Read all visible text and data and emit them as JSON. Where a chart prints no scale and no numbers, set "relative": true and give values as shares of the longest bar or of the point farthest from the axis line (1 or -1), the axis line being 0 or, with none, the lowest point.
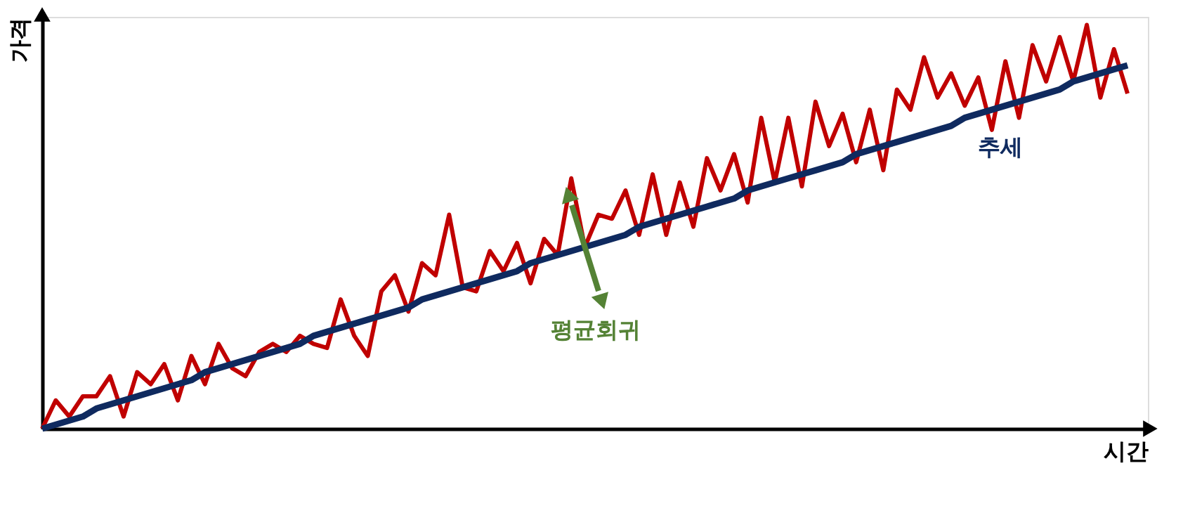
{
  "chart_data": {
    "type": "line",
    "relative": true,
    "xlabel": "시간",
    "ylabel": "가격",
    "categories": [
      null,
      null,
      null,
      null,
      null,
      null,
      null,
      null,
      null,
      null,
      null,
      null,
      null,
      null,
      null,
      null,
      null,
      null,
      null,
      null,
      null,
      null,
      null,
      null,
      null,
      null,
      null,
      null,
      null,
      null,
      null,
      null,
      null,
      null,
      null,
      null,
      null,
      null,
      null,
      null,
      null,
      null,
      null,
      null,
      null,
      null,
      null,
      null,
      null,
      null,
      null,
      null,
      null,
      null,
      null,
      null,
      null,
      null,
      null,
      null,
      null,
      null,
      null,
      null,
      null,
      null,
      null,
      null,
      null,
      null,
      null,
      null,
      null,
      null,
      null,
      null,
      null,
      null,
      null,
      null,
      null
    ],
    "series": [
      {
        "color": "#c00000",
        "values": [
          0,
          0.07,
          0.03,
          0.08,
          0.08,
          0.13,
          0.03,
          0.14,
          0.11,
          0.16,
          0.07,
          0.18,
          0.11,
          0.21,
          0.15,
          0.13,
          0.19,
          0.21,
          0.19,
          0.23,
          0.21,
          0.2,
          0.32,
          0.23,
          0.18,
          0.34,
          0.38,
          0.29,
          0.41,
          0.38,
          0.53,
          0.35,
          0.34,
          0.44,
          0.39,
          0.46,
          0.36,
          0.47,
          0.43,
          0.62,
          0.45,
          0.53,
          0.52,
          0.59,
          0.48,
          0.63,
          0.48,
          0.61,
          0.5,
          0.67,
          0.59,
          0.68,
          0.56,
          0.77,
          0.61,
          0.77,
          0.6,
          0.81,
          0.7,
          0.78,
          0.66,
          0.79,
          0.64,
          0.84,
          0.79,
          0.92,
          0.82,
          0.88,
          0.8,
          0.87,
          0.74,
          0.91,
          0.77,
          0.95,
          0.86,
          0.97,
          0.86,
          1,
          0.82,
          0.94,
          0.83
        ]
      },
      {
        "color": "#0f2a5f",
        "values": [
          0,
          0.01,
          0.02,
          0.03,
          0.05,
          0.06,
          0.07,
          0.08,
          0.09,
          0.1,
          0.11,
          0.12,
          0.14,
          0.15,
          0.16,
          0.17,
          0.18,
          0.19,
          0.2,
          0.21,
          0.23,
          0.24,
          0.25,
          0.26,
          0.27,
          0.28,
          0.29,
          0.3,
          0.32,
          0.33,
          0.34,
          0.35,
          0.36,
          0.37,
          0.38,
          0.39,
          0.41,
          0.42,
          0.43,
          0.44,
          0.45,
          0.46,
          0.47,
          0.48,
          0.5,
          0.51,
          0.52,
          0.53,
          0.54,
          0.55,
          0.56,
          0.57,
          0.59,
          0.6,
          0.61,
          0.62,
          0.63,
          0.64,
          0.65,
          0.66,
          0.68,
          0.69,
          0.7,
          0.71,
          0.72,
          0.73,
          0.74,
          0.75,
          0.77,
          0.78,
          0.79,
          0.8,
          0.81,
          0.82,
          0.83,
          0.84,
          0.86,
          0.87,
          0.88,
          0.89,
          0.9
        ]
      }
    ],
    "annotations": [
      "추세",
      "평균회귀"
    ],
    "marker": "none",
    "line_style": "solid"
  }
}
